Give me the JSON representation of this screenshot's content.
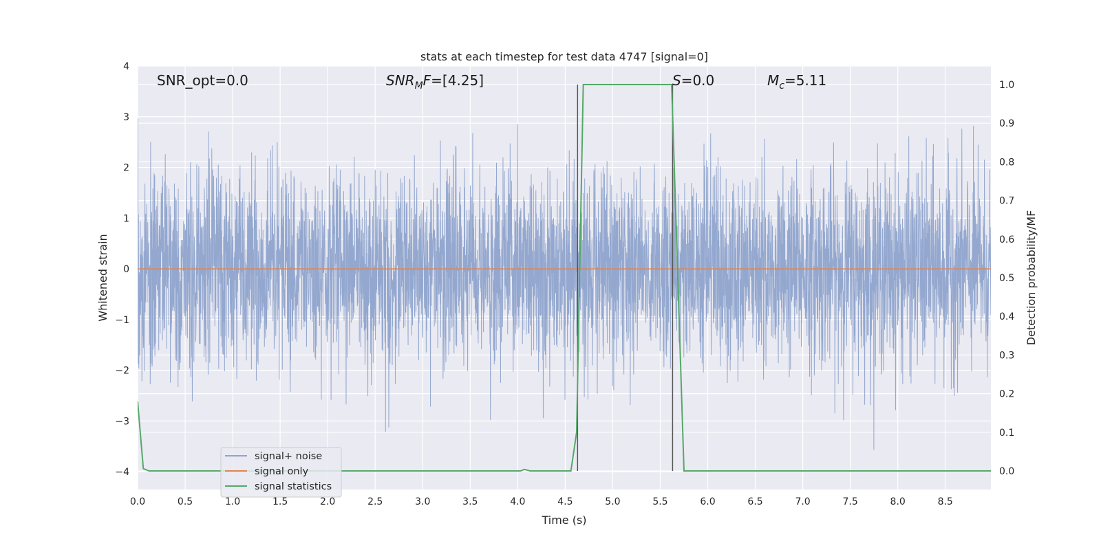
{
  "chart_data": {
    "type": "line",
    "title": "stats at each timestep for test data 4747 [signal=0]",
    "xlabel": "Time (s)",
    "ylabel_left": "Whitened strain",
    "ylabel_right": "Detection probability/MF",
    "xlim": [
      0.0,
      8.98
    ],
    "ylim_left": [
      -4.35,
      4.0
    ],
    "ylim_right": [
      -0.048,
      1.048
    ],
    "x_ticks": [
      "0.0",
      "0.5",
      "1.0",
      "1.5",
      "2.0",
      "2.5",
      "3.0",
      "3.5",
      "4.0",
      "4.5",
      "5.0",
      "5.5",
      "6.0",
      "6.5",
      "7.0",
      "7.5",
      "8.0",
      "8.5"
    ],
    "y_left_ticks": [
      "−4",
      "−3",
      "−2",
      "−1",
      "0",
      "1",
      "2",
      "3",
      "4"
    ],
    "y_right_ticks": [
      "0.0",
      "0.1",
      "0.2",
      "0.3",
      "0.4",
      "0.5",
      "0.6",
      "0.7",
      "0.8",
      "0.9",
      "1.0"
    ],
    "grid": true,
    "legend_position": "bottom-left",
    "annotations": {
      "snr_opt": "SNR_opt=0.0",
      "snr_mf_sym": "SNR",
      "snr_mf_sub": "M",
      "snr_mf_sym2": "F",
      "snr_mf_val": "=[4.25]",
      "s_sym": "S",
      "s_val": "=0.0",
      "mc_sym": "M",
      "mc_sub": "c",
      "mc_val": "=5.11"
    },
    "vertical_markers": [
      4.63,
      5.63
    ],
    "series": [
      {
        "name": "signal+ noise",
        "color": "#8fa4cc",
        "kind": "noise",
        "sample_rate_hz": 2048,
        "approx_std": 1.0,
        "approx_range": [
          -4.0,
          3.6
        ]
      },
      {
        "name": "signal only",
        "color": "#dd8452",
        "kind": "constant",
        "value": 0.0
      },
      {
        "name": "signal statistics",
        "color": "#55a868",
        "kind": "line",
        "x": [
          0.0,
          0.06,
          0.12,
          1.0,
          2.0,
          3.0,
          3.5,
          3.9,
          4.03,
          4.07,
          4.13,
          4.56,
          4.62,
          4.69,
          5.0,
          5.5,
          5.62,
          5.75,
          6.0,
          7.0,
          8.0,
          8.98
        ],
        "y": [
          0.18,
          0.006,
          0.0,
          0.0,
          0.0,
          0.0,
          0.0,
          0.0,
          0.0,
          0.004,
          0.0,
          0.0,
          0.1,
          1.0,
          1.0,
          1.0,
          1.0,
          0.0,
          0.0,
          0.0,
          0.0,
          0.0
        ]
      }
    ]
  }
}
